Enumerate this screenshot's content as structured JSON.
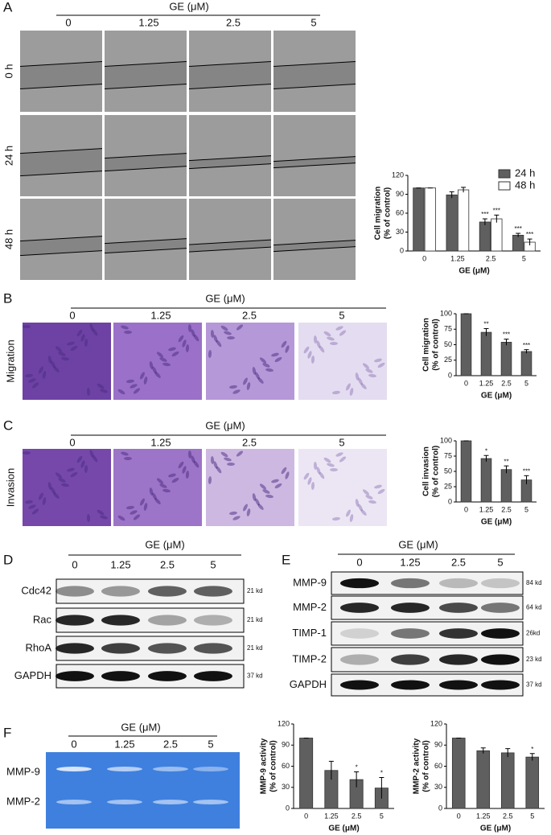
{
  "panels": {
    "A": {
      "label": "A",
      "header": "GE (μM)",
      "doses": [
        "0",
        "1.25",
        "2.5",
        "5"
      ],
      "times": [
        "0 h",
        "24 h",
        "48 h"
      ]
    },
    "B": {
      "label": "B",
      "header": "GE (μM)",
      "doses": [
        "0",
        "1.25",
        "2.5",
        "5"
      ],
      "row_label": "Migration"
    },
    "C": {
      "label": "C",
      "header": "GE (μM)",
      "doses": [
        "0",
        "1.25",
        "2.5",
        "5"
      ],
      "row_label": "Invasion"
    },
    "D": {
      "label": "D",
      "header": "GE (μM)",
      "doses": [
        "0",
        "1.25",
        "2.5",
        "5"
      ],
      "blots": [
        {
          "name": "Cdc42",
          "size": "21 kd"
        },
        {
          "name": "Rac",
          "size": "21 kd"
        },
        {
          "name": "RhoA",
          "size": "21 kd"
        },
        {
          "name": "GAPDH",
          "size": "37 kd"
        }
      ]
    },
    "E": {
      "label": "E",
      "header": "GE (μM)",
      "doses": [
        "0",
        "1.25",
        "2.5",
        "5"
      ],
      "blots": [
        {
          "name": "MMP-9",
          "size": "84 kd"
        },
        {
          "name": "MMP-2",
          "size": "64 kd"
        },
        {
          "name": "TIMP-1",
          "size": "26kd"
        },
        {
          "name": "TIMP-2",
          "size": "23 kd"
        },
        {
          "name": "GAPDH",
          "size": "37 kd"
        }
      ]
    },
    "F": {
      "label": "F",
      "header": "GE (μM)",
      "doses": [
        "0",
        "1.25",
        "2.5",
        "5"
      ],
      "bands": [
        "MMP-9",
        "MMP-2"
      ]
    }
  },
  "chart_data": [
    {
      "type": "bar",
      "ylabel": [
        "Cell migration",
        "(% of control)"
      ],
      "xlabel": "GE (μM)",
      "categories": [
        "0",
        "1.25",
        "2.5",
        "5"
      ],
      "ylim": [
        0,
        120
      ],
      "yticks": [
        0,
        30,
        60,
        90,
        120
      ],
      "legend": "top-right",
      "series": [
        {
          "name": "24 h",
          "color": "#5f5f5f",
          "values": [
            100,
            89,
            46,
            25
          ],
          "errors": [
            0,
            5,
            5,
            3
          ],
          "significance": [
            null,
            null,
            "***",
            "***"
          ]
        },
        {
          "name": "48 h",
          "color": "#ffffff",
          "values": [
            100,
            97,
            51,
            14
          ],
          "errors": [
            0,
            4,
            6,
            5
          ],
          "significance": [
            null,
            null,
            "***",
            "***"
          ]
        }
      ]
    },
    {
      "type": "bar",
      "ylabel": [
        "Cell migration",
        "(% of control)"
      ],
      "xlabel": "GE (μM)",
      "categories": [
        "0",
        "1.25",
        "2.5",
        "5"
      ],
      "ylim": [
        0,
        100
      ],
      "yticks": [
        0,
        25,
        50,
        75,
        100
      ],
      "color": "#5f5f5f",
      "values": [
        100,
        70,
        54,
        39
      ],
      "errors": [
        0,
        6,
        5,
        3
      ],
      "significance": [
        null,
        "**",
        "***",
        "***"
      ]
    },
    {
      "type": "bar",
      "ylabel": [
        "Cell invasion",
        "(% of control)"
      ],
      "xlabel": "GE (μM)",
      "categories": [
        "0",
        "1.25",
        "2.5",
        "5"
      ],
      "ylim": [
        0,
        100
      ],
      "yticks": [
        0,
        25,
        50,
        75,
        100
      ],
      "color": "#5f5f5f",
      "values": [
        100,
        71,
        53,
        36
      ],
      "errors": [
        0,
        5,
        6,
        7
      ],
      "significance": [
        null,
        "*",
        "**",
        "***"
      ]
    },
    {
      "type": "bar",
      "ylabel": [
        "MMP-9 activity",
        "(% of control)"
      ],
      "xlabel": "GE (μM)",
      "categories": [
        "0",
        "1.25",
        "2.5",
        "5"
      ],
      "ylim": [
        0,
        120
      ],
      "yticks": [
        0,
        30,
        60,
        90,
        120
      ],
      "color": "#5f5f5f",
      "values": [
        100,
        54,
        41,
        29
      ],
      "errors": [
        0,
        13,
        11,
        15
      ],
      "significance": [
        null,
        null,
        "*",
        "*"
      ]
    },
    {
      "type": "bar",
      "ylabel": [
        "MMP-2 activity",
        "(% of control)"
      ],
      "xlabel": "GE (μM)",
      "categories": [
        "0",
        "1.25",
        "2.5",
        "5"
      ],
      "ylim": [
        0,
        120
      ],
      "yticks": [
        0,
        30,
        60,
        90,
        120
      ],
      "color": "#5f5f5f",
      "values": [
        100,
        82,
        79,
        73
      ],
      "errors": [
        0,
        4,
        6,
        5
      ],
      "significance": [
        null,
        null,
        null,
        "*"
      ]
    }
  ]
}
